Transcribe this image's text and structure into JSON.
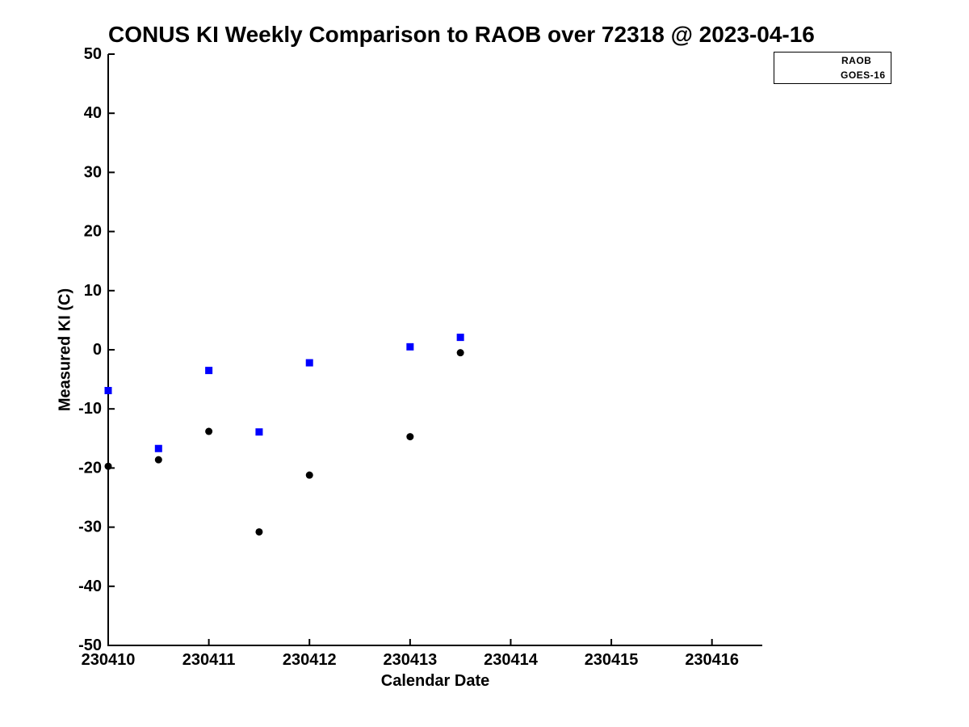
{
  "figure": {
    "background": "#ffffff",
    "text_color": "#000000"
  },
  "chart_data": {
    "type": "scatter",
    "title": "CONUS KI Weekly Comparison to RAOB over 72318 @ 2023-04-16",
    "xlabel": "Calendar Date",
    "ylabel": "Measured KI (C)",
    "xlim": [
      230410,
      230416.5
    ],
    "ylim": [
      -50,
      50
    ],
    "x_ticks": [
      230410,
      230411,
      230412,
      230413,
      230414,
      230415,
      230416
    ],
    "x_tick_labels": [
      "230410",
      "230411",
      "230412",
      "230413",
      "230414",
      "230415",
      "230416"
    ],
    "y_ticks": [
      50,
      40,
      30,
      20,
      10,
      0,
      -10,
      -20,
      -30,
      -40,
      -50
    ],
    "y_tick_labels": [
      "50",
      "40",
      "30",
      "20",
      "10",
      "0",
      "-10",
      "-20",
      "-30",
      "-40",
      "-50"
    ],
    "grid": false,
    "legend": {
      "position": "top-right",
      "entries": [
        {
          "label": "RAOB",
          "marker": "circle",
          "color": "#0000ff"
        },
        {
          "label": "GOES-16",
          "marker": "square",
          "color": "#0000ff"
        }
      ]
    },
    "series": [
      {
        "name": "RAOB",
        "marker": "circle",
        "color": "#000000",
        "x": [
          230410,
          230410.5,
          230411,
          230411.5,
          230412,
          230413,
          230413.5
        ],
        "y": [
          -19.7,
          -18.6,
          -13.8,
          -30.8,
          -21.2,
          -14.7,
          -0.5
        ]
      },
      {
        "name": "GOES-16",
        "marker": "square",
        "color": "#0000ff",
        "x": [
          230410,
          230410.5,
          230411,
          230411.5,
          230412,
          230413,
          230413.5
        ],
        "y": [
          -6.9,
          -16.7,
          -3.5,
          -13.9,
          -2.2,
          0.5,
          2.1
        ]
      }
    ]
  }
}
